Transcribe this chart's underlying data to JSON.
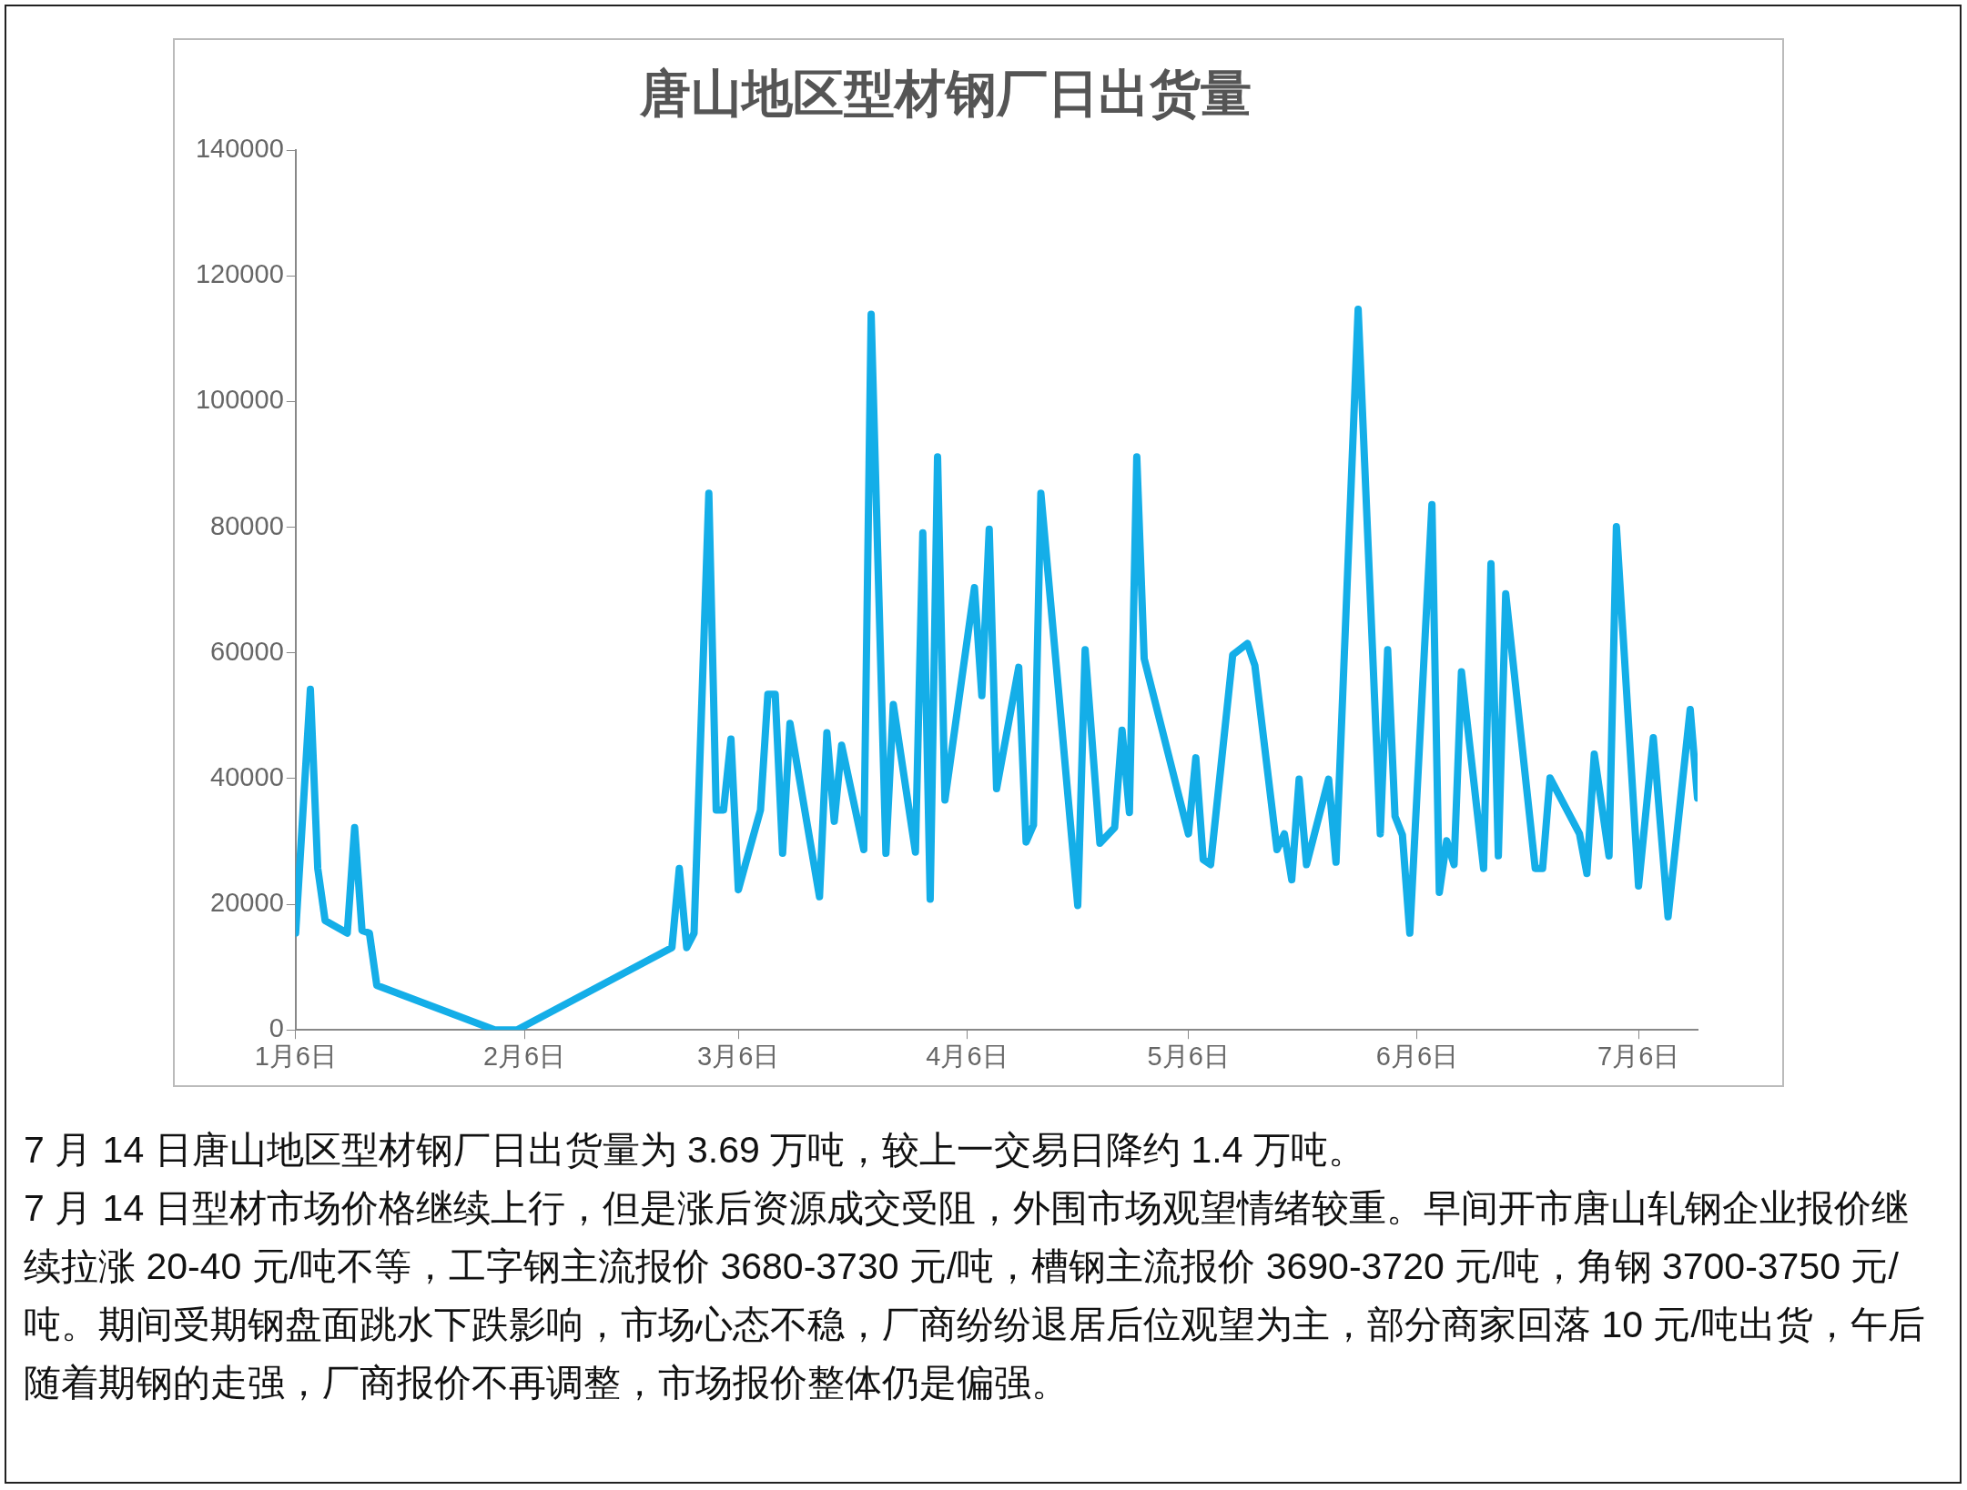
{
  "chart_data": {
    "type": "line",
    "title": "唐山地区型材钢厂日出货量",
    "x": [
      "--01-06",
      "--01-08",
      "--01-09",
      "--01-10",
      "--01-13",
      "--01-14",
      "--01-15",
      "--01-16",
      "--01-17",
      "--02-02",
      "--02-05",
      "--02-26",
      "--02-27",
      "--02-28",
      "--02-29",
      "--03-02",
      "--03-03",
      "--03-04",
      "--03-05",
      "--03-06",
      "--03-09",
      "--03-10",
      "--03-11",
      "--03-12",
      "--03-13",
      "--03-17",
      "--03-18",
      "--03-19",
      "--03-20",
      "--03-23",
      "--03-24",
      "--03-26",
      "--03-27",
      "--03-30",
      "--03-31",
      "--04-01",
      "--04-02",
      "--04-03",
      "--04-07",
      "--04-08",
      "--04-09",
      "--04-10",
      "--04-13",
      "--04-14",
      "--04-15",
      "--04-16",
      "--04-21",
      "--04-22",
      "--04-24",
      "--04-26",
      "--04-27",
      "--04-28",
      "--04-29",
      "--04-30",
      "--05-06",
      "--05-07",
      "--05-08",
      "--05-09",
      "--05-12",
      "--05-14",
      "--05-15",
      "--05-18",
      "--05-19",
      "--05-20",
      "--05-21",
      "--05-22",
      "--05-25",
      "--05-26",
      "--05-29",
      "--06-01",
      "--06-02",
      "--06-03",
      "--06-04",
      "--06-05",
      "--06-08",
      "--06-09",
      "--06-10",
      "--06-11",
      "--06-12",
      "--06-15",
      "--06-16",
      "--06-17",
      "--06-18",
      "--06-22",
      "--06-23",
      "--06-24",
      "--06-28",
      "--06-29",
      "--06-30",
      "--07-02",
      "--07-03",
      "--07-06",
      "--07-08",
      "--07-10",
      "--07-13",
      "--07-14"
    ],
    "values": [
      15400,
      54200,
      25700,
      17400,
      15400,
      32200,
      15800,
      15400,
      7100,
      0,
      0,
      13100,
      25700,
      13100,
      15400,
      85400,
      35000,
      35000,
      46300,
      22300,
      35000,
      53400,
      53400,
      28100,
      48800,
      21200,
      47300,
      33200,
      45300,
      28700,
      113900,
      28100,
      51800,
      28300,
      79100,
      20800,
      91200,
      36600,
      70400,
      53200,
      79700,
      38400,
      57700,
      29900,
      32600,
      85400,
      19800,
      60500,
      29700,
      32200,
      47700,
      34600,
      91200,
      59100,
      31200,
      43300,
      27100,
      26300,
      59700,
      61500,
      58000,
      28700,
      31200,
      23900,
      39900,
      26300,
      39900,
      26700,
      114700,
      31200,
      60500,
      34000,
      31000,
      15400,
      83600,
      21900,
      30100,
      26300,
      57000,
      25700,
      74200,
      27700,
      69400,
      25700,
      25700,
      40100,
      31200,
      24900,
      43900,
      27700,
      80100,
      22900,
      46500,
      18000,
      51000,
      36900
    ],
    "color": "#14aee8",
    "xlim": [
      "--01-06",
      "--07-14"
    ],
    "xticks": [
      {
        "value": "--01-06",
        "label": "1月6日"
      },
      {
        "value": "--02-06",
        "label": "2月6日"
      },
      {
        "value": "--03-06",
        "label": "3月6日"
      },
      {
        "value": "--04-06",
        "label": "4月6日"
      },
      {
        "value": "--05-06",
        "label": "5月6日"
      },
      {
        "value": "--06-06",
        "label": "6月6日"
      },
      {
        "value": "--07-06",
        "label": "7月6日"
      }
    ],
    "ylim": [
      0,
      140000
    ],
    "yticks": [
      0,
      20000,
      40000,
      60000,
      80000,
      100000,
      120000,
      140000
    ],
    "grid": false,
    "legend": false,
    "marker": "none",
    "line_style": "solid",
    "annotations": [
      "7 月 14 日唐山地区型材钢厂日出货量为 3.69 万吨，较上一交易日降约 1.4 万吨。",
      "7 月 14 日型材市场价格继续上行，但是涨后资源成交受阻，外围市场观望情绪较重。早间开市唐山轧钢企业报价继续拉涨 20-40 元/吨不等，工字钢主流报价 3680-3730 元/吨，槽钢主流报价 3690-3720 元/吨，角钢 3700-3750 元/吨。期间受期钢盘面跳水下跌影响，市场心态不稳，厂商纷纷退居后位观望为主，部分商家回落 10 元/吨出货，午后随着期钢的走强，厂商报价不再调整，市场报价整体仍是偏强。"
    ]
  }
}
